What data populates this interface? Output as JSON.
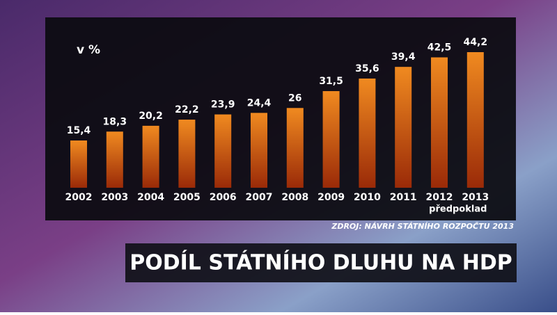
{
  "chart_data": {
    "type": "bar",
    "title": "PODÍL STÁTNÍHO DLUHU NA HDP",
    "unit_label": "v %",
    "source": "ZDROJ: NÁVRH STÁTNÍHO ROZPOČTU 2013",
    "annotation": "předpoklad",
    "categories": [
      "2002",
      "2003",
      "2004",
      "2005",
      "2006",
      "2007",
      "2008",
      "2009",
      "2010",
      "2011",
      "2012",
      "2013"
    ],
    "values": [
      15.4,
      18.3,
      20.2,
      22.2,
      23.9,
      24.4,
      26,
      31.5,
      35.6,
      39.4,
      42.5,
      44.2
    ],
    "value_labels": [
      "15,4",
      "18,3",
      "20,2",
      "22,2",
      "23,9",
      "24,4",
      "26",
      "31,5",
      "35,6",
      "39,4",
      "42,5",
      "44,2"
    ],
    "color": "#e8661a"
  }
}
